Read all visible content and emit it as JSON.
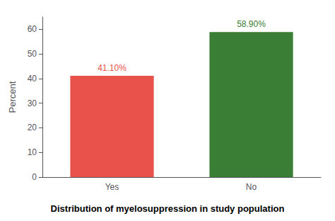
{
  "chart_data": {
    "type": "bar",
    "title": "Distribution of myelosuppression in study population",
    "ylabel": "Percent",
    "categories": [
      "Yes",
      "No"
    ],
    "values": [
      41.1,
      58.9
    ],
    "value_labels": [
      "41.10%",
      "58.90%"
    ],
    "colors": [
      "#e8524a",
      "#3a7d34"
    ],
    "ylim": [
      0,
      65
    ],
    "yticks": [
      0,
      10,
      20,
      30,
      40,
      50,
      60
    ],
    "grid": false,
    "data_labels": true
  }
}
